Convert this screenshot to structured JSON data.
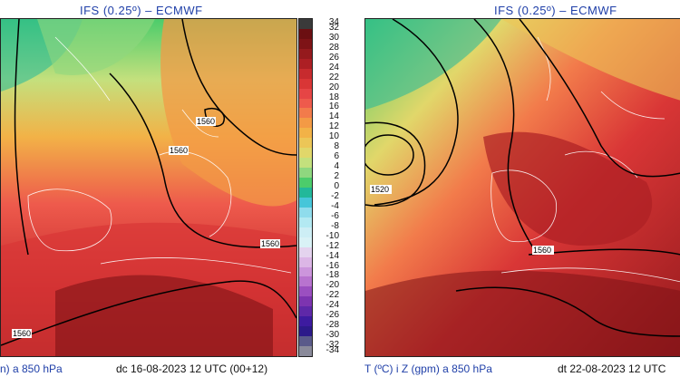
{
  "panels": [
    {
      "title": "IFS (0.25º) – ECMWF",
      "footer_left": "n) a 850 hPa",
      "footer_right": "dc 16-08-2023 12 UTC (00+12)",
      "contour_labels": [
        "1560",
        "1560",
        "1560",
        "1560"
      ]
    },
    {
      "title": "IFS (0.25º) – ECMWF",
      "footer_left": "T (ºC) i Z (gpm) a 850 hPa",
      "footer_right": "dt 22-08-2023 12 UTC",
      "contour_labels": [
        "1520",
        "1560"
      ]
    }
  ],
  "colorbar": {
    "labels": [
      "34",
      "32",
      "30",
      "28",
      "26",
      "24",
      "22",
      "20",
      "18",
      "16",
      "14",
      "12",
      "10",
      "8",
      "6",
      "4",
      "2",
      "0",
      "-2",
      "-4",
      "-6",
      "-8",
      "-10",
      "-12",
      "-14",
      "-16",
      "-18",
      "-20",
      "-22",
      "-24",
      "-26",
      "-28",
      "-30",
      "-32",
      "-34"
    ],
    "colors": [
      "#3a3a3a",
      "#6b0f12",
      "#7e1316",
      "#951a1d",
      "#ad1f24",
      "#c72b2e",
      "#d93636",
      "#e64545",
      "#ee5a4c",
      "#f27b4b",
      "#f39a45",
      "#f2b247",
      "#ecc657",
      "#e1d76a",
      "#c4e07d",
      "#8fd77f",
      "#4ccc6b",
      "#22b89a",
      "#46c6d9",
      "#8fdcec",
      "#b3e9f2",
      "#cdeef5",
      "#d9f2f6",
      "#e4d3ee",
      "#dcb6e6",
      "#cc95dc",
      "#b873cf",
      "#9b4fc0",
      "#7d34b0",
      "#5e28a8",
      "#3d1ba0",
      "#2c1a8a",
      "#5a5a8a",
      "#8a8a9a"
    ]
  }
}
